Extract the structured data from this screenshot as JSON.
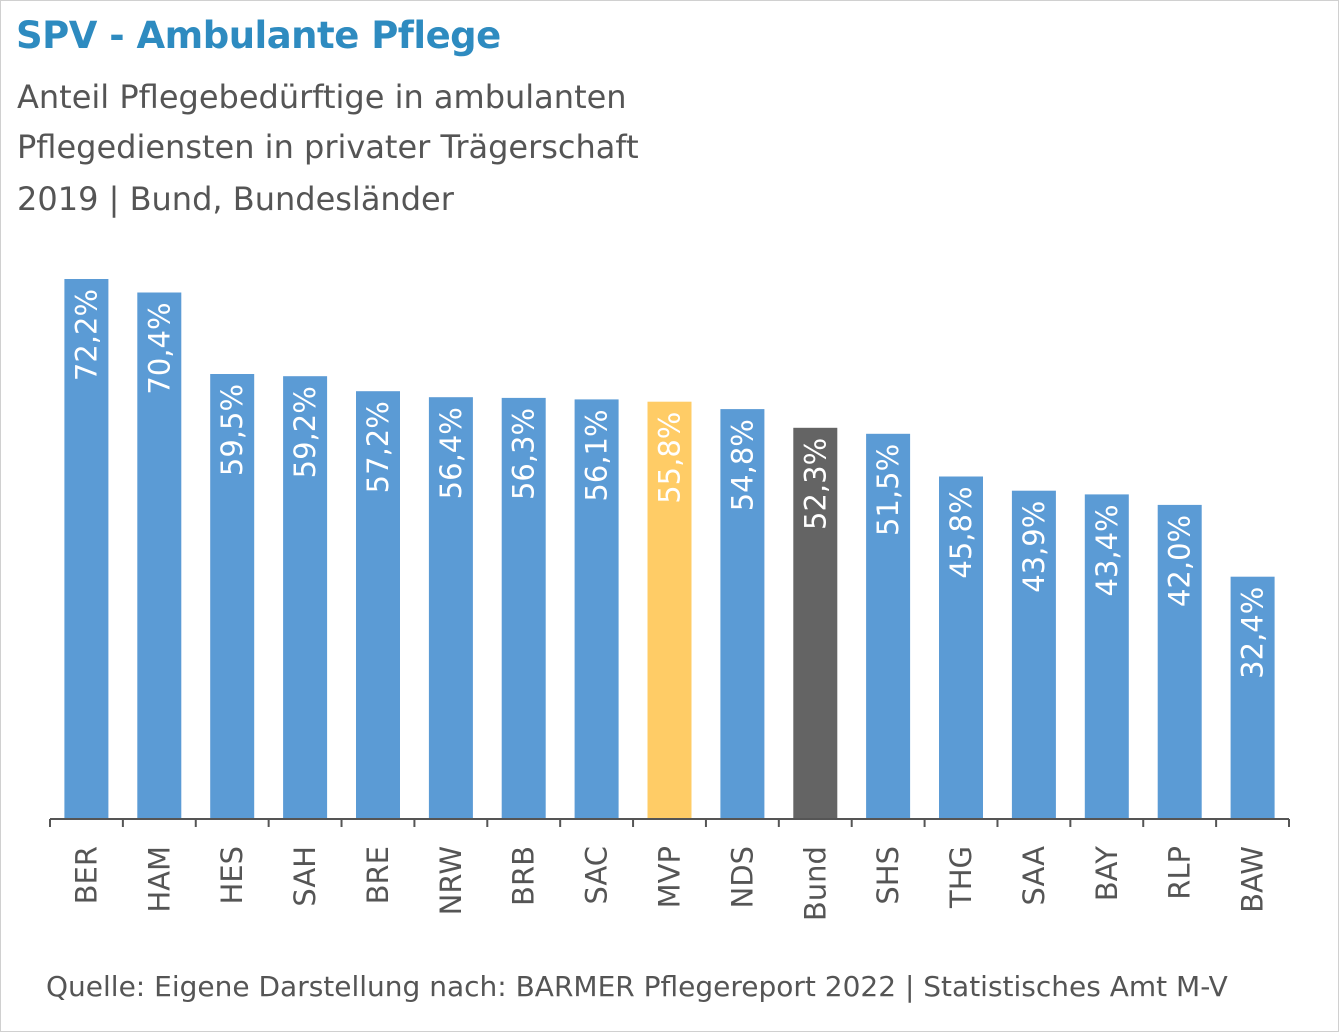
{
  "header": {
    "title": "SPV - Ambulante Pflege",
    "subtitle_line1": "Anteil Pflegebedürftige in ambulanten",
    "subtitle_line2": "Pflegediensten in privater Trägerschaft",
    "subtitle_line3": "2019 | Bund, Bundesländer"
  },
  "footer": {
    "source": "Quelle: Eigene Darstellung nach: BARMER Pflegereport 2022 | Statistisches Amt M-V"
  },
  "colors": {
    "bar": "#5b9bd5",
    "highlight": "#ffcc66",
    "national": "#646464",
    "title": "#2e8bc0",
    "text": "#555555"
  },
  "chart_data": {
    "type": "bar",
    "categories": [
      "BER",
      "HAM",
      "HES",
      "SAH",
      "BRE",
      "NRW",
      "BRB",
      "SAC",
      "MVP",
      "NDS",
      "Bund",
      "SHS",
      "THG",
      "SAA",
      "BAY",
      "RLP",
      "BAW"
    ],
    "values": [
      72.2,
      70.4,
      59.5,
      59.2,
      57.2,
      56.4,
      56.3,
      56.1,
      55.8,
      54.8,
      52.3,
      51.5,
      45.8,
      43.9,
      43.4,
      42.0,
      32.4
    ],
    "data_labels": [
      "72,2%",
      "70,4%",
      "59,5%",
      "59,2%",
      "57,2%",
      "56,4%",
      "56,3%",
      "56,1%",
      "55,8%",
      "54,8%",
      "52,3%",
      "51,5%",
      "45,8%",
      "43,9%",
      "43,4%",
      "42,0%",
      "32,4%"
    ],
    "highlight_category": "MVP",
    "national_category": "Bund",
    "ylim": [
      0,
      72.2
    ],
    "grid": false,
    "legend": "none"
  }
}
